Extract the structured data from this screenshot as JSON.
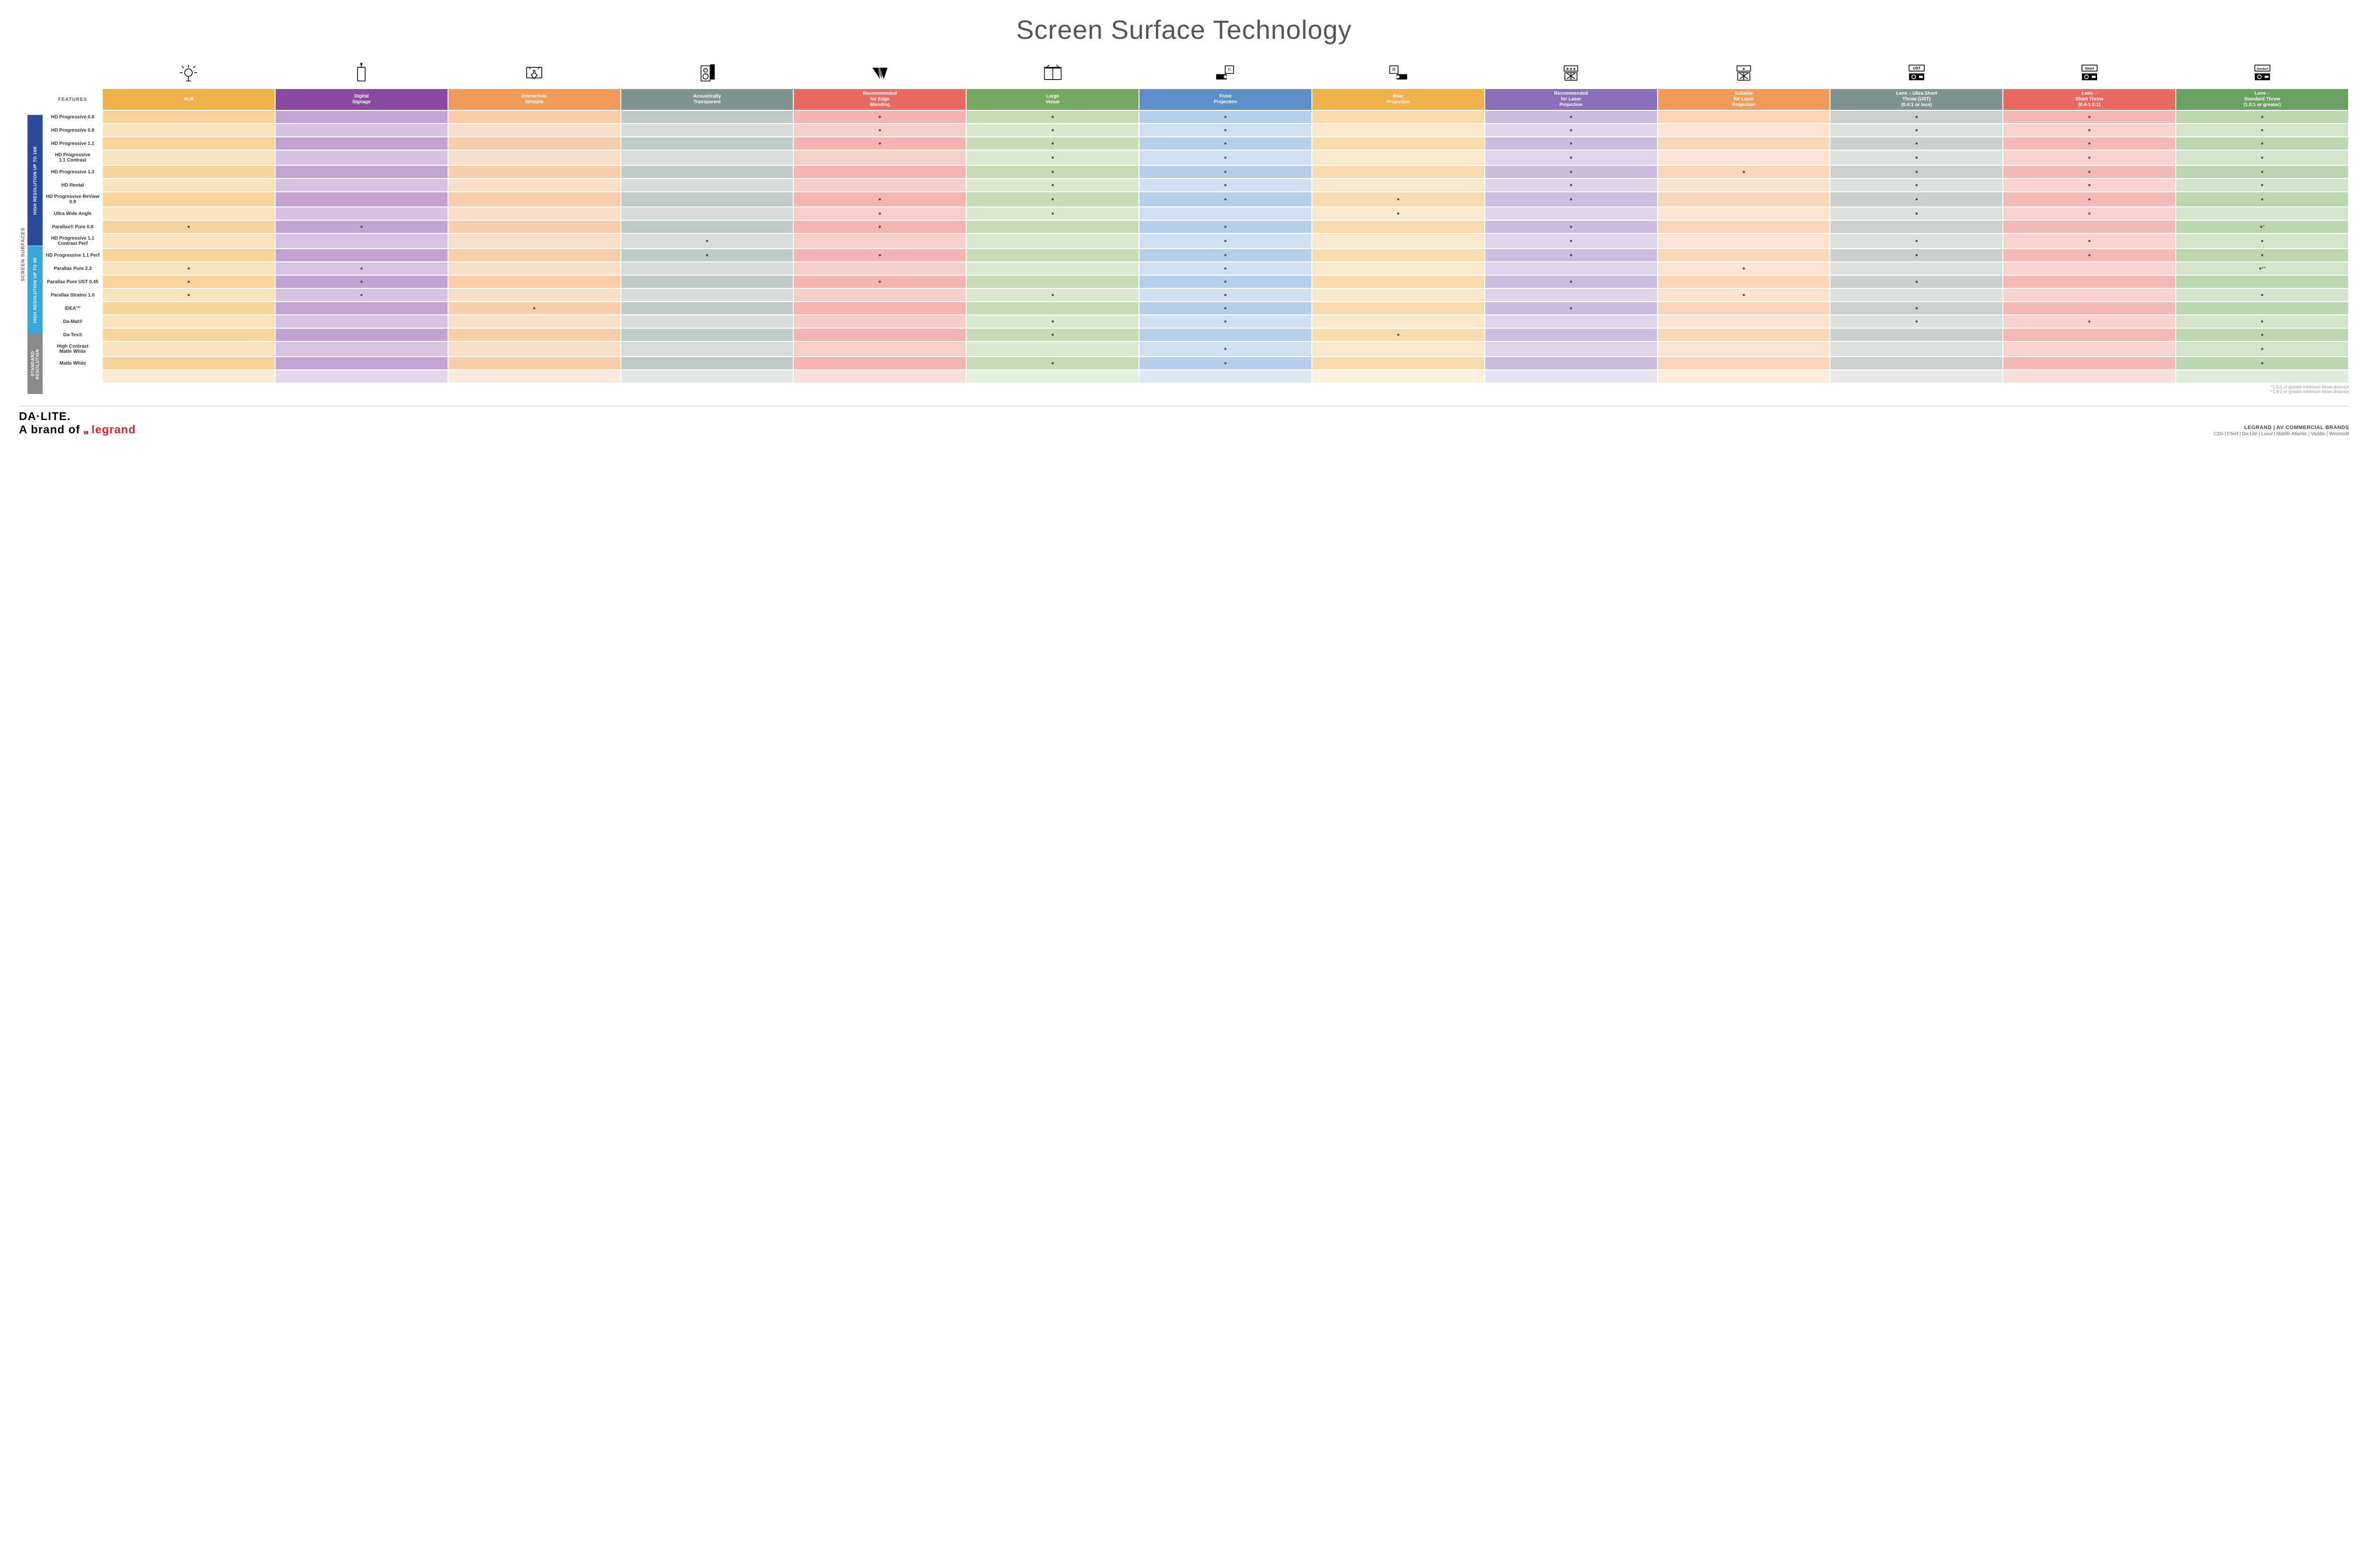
{
  "title": "Screen Surface Technology",
  "columns": [
    {
      "key": "alr",
      "label": "ALR",
      "color": "#f2b04a",
      "alt": "#f7d29b"
    },
    {
      "key": "signage",
      "label": "Digital\nSignage",
      "color": "#8a4aa0",
      "alt": "#c2a3d1"
    },
    {
      "key": "interactive",
      "label": "Interactive/\nWritable",
      "color": "#f09b5a",
      "alt": "#f8cdab"
    },
    {
      "key": "acoustic",
      "label": "Acoustically\nTransparent",
      "color": "#7f9490",
      "alt": "#bfc9c6"
    },
    {
      "key": "edge",
      "label": "Recommended\nfor Edge\nBlending",
      "color": "#e86a63",
      "alt": "#f4b3ae"
    },
    {
      "key": "large",
      "label": "Large\nVenue",
      "color": "#77a860",
      "alt": "#c6dcb6"
    },
    {
      "key": "front",
      "label": "Front\nProjection",
      "color": "#5a8fc9",
      "alt": "#b7cee9"
    },
    {
      "key": "rear",
      "label": "Rear\nProjection",
      "color": "#f2b04a",
      "alt": "#f8dcae"
    },
    {
      "key": "reclaser",
      "label": "Recommended\nfor Laser\nProjection",
      "color": "#8a6fb8",
      "alt": "#c9bedf"
    },
    {
      "key": "suitlaser",
      "label": "Suitable\nfor Laser\nProjection",
      "color": "#f09b5a",
      "alt": "#f8d5b8"
    },
    {
      "key": "ust",
      "label": "Lens – Ultra Short\nThrow (UST)\n(0.4:1 or less)",
      "color": "#7f9490",
      "alt": "#c9d0cd"
    },
    {
      "key": "short",
      "label": "Lens –\nShort Throw\n(0.4-1.0:1)",
      "color": "#e86a63",
      "alt": "#f4b9b4"
    },
    {
      "key": "std",
      "label": "Lens –\nStandard Throw\n(1.0:1 or greater)",
      "color": "#6aa060",
      "alt": "#bcd6b2"
    }
  ],
  "icon_labels": [
    "alr-icon",
    "signage-icon",
    "interactive-icon",
    "acoustic-icon",
    "edge-icon",
    "large-icon",
    "front-icon",
    "rear-icon",
    "reclaser-icon",
    "suitlaser-icon",
    "ust-icon",
    "short-icon",
    "std-icon"
  ],
  "header_features": "FEATURES",
  "side_label": "SCREEN SURFACES",
  "groups": [
    {
      "label": "HIGH RESOLUTION UP TO 16K",
      "color": "#2b4a9c",
      "rows": 9
    },
    {
      "label": "HIGH RESOLUTION UP TO 4K",
      "color": "#3aa7d9",
      "rows": 6
    },
    {
      "label": "STANDARD\nRESOLUTION",
      "color": "#8a8a8a",
      "rows": 4
    }
  ],
  "rows": [
    {
      "label": "HD Progressive 0.6",
      "cells": [
        "",
        "",
        "",
        "",
        "●",
        "●",
        "●",
        "",
        "●",
        "",
        "●",
        "●",
        "●"
      ]
    },
    {
      "label": "HD Progressive 0.9",
      "cells": [
        "",
        "",
        "",
        "",
        "●",
        "●",
        "●",
        "",
        "●",
        "",
        "●",
        "●",
        "●"
      ]
    },
    {
      "label": "HD Progressive 1.1",
      "cells": [
        "",
        "",
        "",
        "",
        "●",
        "●",
        "●",
        "",
        "●",
        "",
        "●",
        "●",
        "●"
      ]
    },
    {
      "label": "HD Progressive\n1.1 Contrast",
      "cells": [
        "",
        "",
        "",
        "",
        "",
        "●",
        "●",
        "",
        "●",
        "",
        "●",
        "●",
        "●"
      ]
    },
    {
      "label": "HD Progressive 1.3",
      "cells": [
        "",
        "",
        "",
        "",
        "",
        "●",
        "●",
        "",
        "●",
        "●",
        "●",
        "●",
        "●"
      ]
    },
    {
      "label": "HD Rental",
      "cells": [
        "",
        "",
        "",
        "",
        "",
        "●",
        "●",
        "",
        "●",
        "",
        "●",
        "●",
        "●"
      ]
    },
    {
      "label": "HD Progressive ReView 0.9",
      "cells": [
        "",
        "",
        "",
        "",
        "●",
        "●",
        "●",
        "●",
        "●",
        "",
        "●",
        "●",
        "●"
      ]
    },
    {
      "label": "Ultra Wide Angle",
      "cells": [
        "",
        "",
        "",
        "",
        "●",
        "●",
        "",
        "●",
        "",
        "",
        "●",
        "●",
        ""
      ]
    },
    {
      "label": "Parallax® Pure 0.8",
      "cells": [
        "●",
        "●",
        "",
        "",
        "●",
        "",
        "●",
        "",
        "●",
        "",
        "",
        "",
        "●*"
      ]
    },
    {
      "label": "HD Progressive 1.1\nContrast Perf",
      "cells": [
        "",
        "",
        "",
        "●",
        "",
        "",
        "●",
        "",
        "●",
        "",
        "●",
        "●",
        "●"
      ]
    },
    {
      "label": "HD Progressive 1.1 Perf",
      "cells": [
        "",
        "",
        "",
        "●",
        "●",
        "",
        "●",
        "",
        "●",
        "",
        "●",
        "●",
        "●"
      ]
    },
    {
      "label": "Parallax Pure 2.3",
      "cells": [
        "●",
        "●",
        "",
        "",
        "",
        "",
        "●",
        "",
        "",
        "●",
        "",
        "",
        "●**"
      ]
    },
    {
      "label": "Parallax Pure UST 0.45",
      "cells": [
        "●",
        "●",
        "",
        "",
        "●",
        "",
        "●",
        "",
        "●",
        "",
        "●",
        "",
        ""
      ]
    },
    {
      "label": "Parallax Stratos 1.0",
      "cells": [
        "●",
        "●",
        "",
        "",
        "",
        "●",
        "●",
        "",
        "",
        "●",
        "",
        "",
        "●"
      ]
    },
    {
      "label": "IDEA™",
      "cells": [
        "",
        "",
        "●",
        "",
        "",
        "",
        "●",
        "",
        "●",
        "",
        "●",
        "",
        ""
      ]
    },
    {
      "label": "Da-Mat®",
      "cells": [
        "",
        "",
        "",
        "",
        "",
        "●",
        "●",
        "",
        "",
        "",
        "●",
        "●",
        "●"
      ]
    },
    {
      "label": "Da-Tex®",
      "cells": [
        "",
        "",
        "",
        "",
        "",
        "●",
        "",
        "●",
        "",
        "",
        "",
        "",
        "●"
      ]
    },
    {
      "label": "High Contrast\nMatte White",
      "cells": [
        "",
        "",
        "",
        "",
        "",
        "",
        "●",
        "",
        "",
        "",
        "",
        "",
        "●"
      ]
    },
    {
      "label": "Matte White",
      "cells": [
        "",
        "",
        "",
        "",
        "",
        "●",
        "●",
        "",
        "",
        "",
        "",
        "",
        "●"
      ]
    }
  ],
  "footnotes": [
    "*1.5:1 or greater minimum throw distance",
    "**1.8:1 or greater minimum throw distance"
  ],
  "footer": {
    "logo_main": "DA·LITE.",
    "logo_sub_prefix": "A brand of ",
    "logo_sub_brand": "legrand",
    "brands_title": "LEGRAND | AV COMMERCIAL BRANDS",
    "brands_list": "C2G  |  Chief  |  Da-Lite  |  Luxul  |  Middle Atlantic  |  Vaddio  |  Wiremold"
  },
  "svg_stroke": "#000"
}
